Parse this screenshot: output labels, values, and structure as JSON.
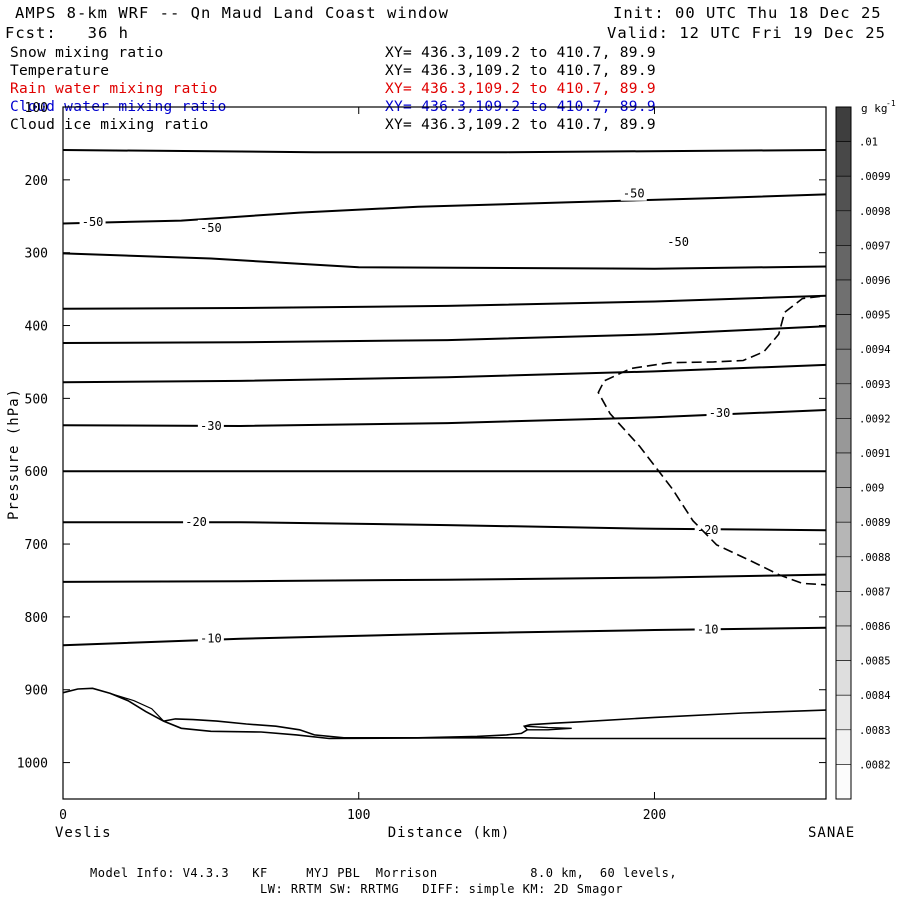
{
  "header": {
    "title": "AMPS 8-km WRF -- Qn Maud Land Coast window",
    "init": "Init: 00 UTC Thu 18 Dec 25",
    "forecast": "Fcst:   36 h",
    "valid": "Valid: 12 UTC Fri 19 Dec 25"
  },
  "fields": [
    {
      "name": "Snow mixing ratio",
      "xy": "XY= 436.3,109.2 to 410.7, 89.9",
      "color": "#000000"
    },
    {
      "name": "Temperature",
      "xy": "XY= 436.3,109.2 to 410.7, 89.9",
      "color": "#000000"
    },
    {
      "name": "Rain water mixing ratio",
      "xy": "XY= 436.3,109.2 to 410.7, 89.9",
      "color": "#e00000"
    },
    {
      "name": "Cloud water mixing ratio",
      "xy": "XY= 436.3,109.2 to 410.7, 89.9",
      "color": "#0000d0"
    },
    {
      "name": "Cloud ice mixing ratio",
      "xy": "XY= 436.3,109.2 to 410.7, 89.9",
      "color": "#000000"
    }
  ],
  "footer": {
    "line1": "Model Info: V4.3.3   KF     MYJ PBL  Morrison            8.0 km,  60 levels,",
    "line2": "LW: RRTM SW: RRTMG   DIFF: simple KM: 2D Smagor"
  },
  "chart_data": {
    "type": "contour",
    "xlabel": "Distance (km)",
    "ylabel": "Pressure (hPa)",
    "xlim": [
      0,
      258
    ],
    "ylim": [
      1050,
      100
    ],
    "x_ticks": [
      0,
      100,
      200
    ],
    "y_ticks": [
      100,
      200,
      300,
      400,
      500,
      600,
      700,
      800,
      900,
      1000
    ],
    "left_endpoint": "Veslis",
    "right_endpoint": "SANAE",
    "colorbar": {
      "units": "g kg",
      "units_exponent": "-1",
      "labels": [
        ".01",
        ".0099",
        ".0098",
        ".0097",
        ".0096",
        ".0095",
        ".0094",
        ".0093",
        ".0092",
        ".0091",
        ".009",
        ".0089",
        ".0088",
        ".0087",
        ".0086",
        ".0085",
        ".0084",
        ".0083",
        ".0082"
      ]
    },
    "isotherms": [
      {
        "label": "",
        "points": [
          [
            0,
            159
          ],
          [
            85,
            162
          ],
          [
            150,
            162
          ],
          [
            258,
            159
          ]
        ]
      },
      {
        "label": "-50",
        "label_pos": [
          [
            10,
            258
          ],
          [
            193,
            219
          ]
        ],
        "points": [
          [
            0,
            260
          ],
          [
            40,
            256
          ],
          [
            80,
            245
          ],
          [
            120,
            237
          ],
          [
            170,
            231
          ],
          [
            220,
            225
          ],
          [
            258,
            220
          ]
        ]
      },
      {
        "label": "-50",
        "label_pos": [
          [
            50,
            266
          ],
          [
            208,
            285
          ]
        ],
        "points": [
          [
            0,
            301
          ],
          [
            50,
            308
          ],
          [
            100,
            320
          ],
          [
            200,
            322
          ],
          [
            258,
            319
          ]
        ]
      },
      {
        "label": "",
        "points": [
          [
            0,
            377
          ],
          [
            60,
            376
          ],
          [
            130,
            373
          ],
          [
            200,
            367
          ],
          [
            258,
            359
          ]
        ]
      },
      {
        "label": "",
        "points": [
          [
            0,
            424
          ],
          [
            60,
            423
          ],
          [
            130,
            420
          ],
          [
            200,
            412
          ],
          [
            258,
            401
          ]
        ]
      },
      {
        "label": "",
        "points": [
          [
            0,
            478
          ],
          [
            60,
            476
          ],
          [
            130,
            471
          ],
          [
            200,
            463
          ],
          [
            258,
            454
          ]
        ]
      },
      {
        "label": "-30",
        "label_pos": [
          [
            50,
            538
          ],
          [
            222,
            520
          ]
        ],
        "points": [
          [
            0,
            537
          ],
          [
            60,
            538
          ],
          [
            130,
            534
          ],
          [
            200,
            526
          ],
          [
            258,
            516
          ]
        ]
      },
      {
        "label": "",
        "points": [
          [
            0,
            600
          ],
          [
            258,
            600
          ]
        ]
      },
      {
        "label": "-20",
        "label_pos": [
          [
            45,
            670
          ],
          [
            218,
            681
          ]
        ],
        "points": [
          [
            0,
            670
          ],
          [
            60,
            670
          ],
          [
            130,
            674
          ],
          [
            200,
            679
          ],
          [
            258,
            681
          ]
        ]
      },
      {
        "label": "",
        "points": [
          [
            0,
            752
          ],
          [
            60,
            751
          ],
          [
            130,
            749
          ],
          [
            200,
            746
          ],
          [
            258,
            742
          ]
        ]
      },
      {
        "label": "-10",
        "label_pos": [
          [
            50,
            830
          ],
          [
            218,
            817
          ]
        ],
        "points": [
          [
            0,
            839
          ],
          [
            60,
            830
          ],
          [
            130,
            823
          ],
          [
            200,
            818
          ],
          [
            258,
            815
          ]
        ]
      }
    ],
    "mixing_ratio_contour": {
      "style": "dashed",
      "points": [
        [
          256,
          360
        ],
        [
          250,
          363
        ],
        [
          244,
          382
        ],
        [
          242,
          412
        ],
        [
          237,
          436
        ],
        [
          230,
          448
        ],
        [
          220,
          450
        ],
        [
          205,
          451
        ],
        [
          192,
          459
        ],
        [
          183,
          476
        ],
        [
          181,
          492
        ],
        [
          185,
          521
        ],
        [
          195,
          566
        ],
        [
          206,
          624
        ],
        [
          213,
          668
        ],
        [
          221,
          701
        ],
        [
          233,
          724
        ],
        [
          242,
          742
        ],
        [
          250,
          754
        ],
        [
          258,
          756
        ]
      ]
    },
    "terrain": {
      "lower_outline": [
        [
          0,
          904
        ],
        [
          5,
          899
        ],
        [
          10,
          898
        ],
        [
          16,
          905
        ],
        [
          22,
          915
        ],
        [
          28,
          930
        ],
        [
          34,
          943
        ],
        [
          40,
          953
        ],
        [
          50,
          957
        ],
        [
          67,
          958
        ],
        [
          79,
          962
        ],
        [
          90,
          967
        ],
        [
          130,
          966
        ],
        [
          155,
          966
        ],
        [
          170,
          967
        ],
        [
          258,
          967
        ]
      ],
      "upper_outline": [
        [
          34,
          943
        ],
        [
          38,
          940
        ],
        [
          44,
          941
        ],
        [
          52,
          943
        ],
        [
          62,
          947
        ],
        [
          72,
          950
        ],
        [
          80,
          955
        ],
        [
          85,
          962
        ],
        [
          95,
          966
        ],
        [
          120,
          966
        ],
        [
          140,
          964
        ],
        [
          150,
          962
        ],
        [
          155,
          960
        ],
        [
          157,
          955
        ],
        [
          156,
          950
        ],
        [
          158,
          948
        ],
        [
          166,
          946
        ],
        [
          175,
          944
        ],
        [
          200,
          938
        ],
        [
          230,
          932
        ],
        [
          258,
          928
        ]
      ],
      "notch": [
        [
          156,
          950
        ],
        [
          164,
          952
        ],
        [
          172,
          953
        ],
        [
          164,
          955
        ],
        [
          157,
          955
        ]
      ],
      "left_slope": [
        [
          16,
          905
        ],
        [
          24,
          915
        ],
        [
          30,
          926
        ],
        [
          34,
          943
        ]
      ]
    }
  }
}
